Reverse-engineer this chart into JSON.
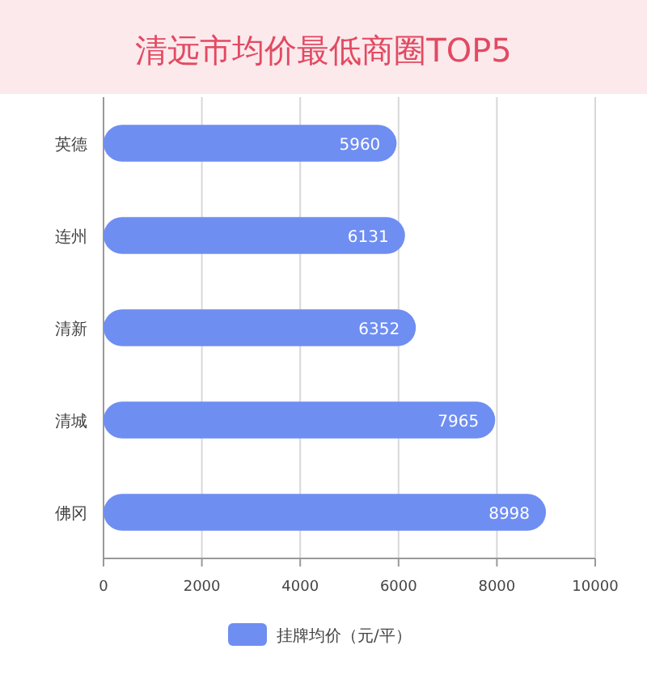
{
  "chart_data": {
    "type": "bar",
    "orientation": "horizontal",
    "title": "清远市均价最低商圈TOP5",
    "categories": [
      "英德",
      "连州",
      "清新",
      "清城",
      "佛冈"
    ],
    "series": [
      {
        "name": "挂牌均价（元/平）",
        "color": "#6f8ef2",
        "values": [
          5960,
          6131,
          6352,
          7965,
          8998
        ]
      }
    ],
    "xlim": [
      0,
      10000
    ],
    "xticks": [
      0,
      2000,
      4000,
      6000,
      8000,
      10000
    ],
    "grid": "x",
    "legend": "bottom",
    "data_labels": true
  }
}
